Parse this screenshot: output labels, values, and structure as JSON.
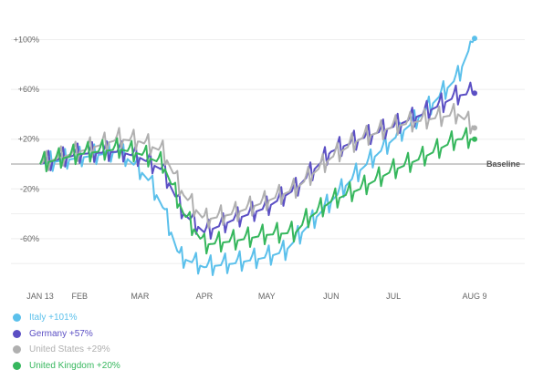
{
  "chart_data": {
    "type": "line",
    "title": "",
    "xlabel": "",
    "ylabel": "",
    "ylim": [
      -90,
      125
    ],
    "baseline_label": "Baseline",
    "y_ticks": [
      {
        "value": 100,
        "label": "+100%"
      },
      {
        "value": 60,
        "label": "+60%"
      },
      {
        "value": 20,
        "label": "+20%"
      },
      {
        "value": -20,
        "label": "-20%"
      },
      {
        "value": -60,
        "label": "-60%"
      }
    ],
    "x_ticks": [
      {
        "date": "2020-01-13",
        "label": "JAN 13"
      },
      {
        "date": "2020-02-01",
        "label": "FEB"
      },
      {
        "date": "2020-03-01",
        "label": "MAR"
      },
      {
        "date": "2020-04-01",
        "label": "APR"
      },
      {
        "date": "2020-05-01",
        "label": "MAY"
      },
      {
        "date": "2020-06-01",
        "label": "JUN"
      },
      {
        "date": "2020-07-01",
        "label": "JUL"
      },
      {
        "date": "2020-08-09",
        "label": "AUG 9"
      }
    ],
    "x_start": "2020-01-13",
    "x_end": "2020-08-09",
    "series": [
      {
        "name": "Italy",
        "color": "#5bc0eb",
        "end_label": "+101%",
        "anchors": [
          [
            "2020-01-13",
            0
          ],
          [
            "2020-02-01",
            5
          ],
          [
            "2020-02-20",
            10
          ],
          [
            "2020-03-01",
            -5
          ],
          [
            "2020-03-06",
            -15
          ],
          [
            "2020-03-12",
            -35
          ],
          [
            "2020-03-20",
            -75
          ],
          [
            "2020-04-01",
            -83
          ],
          [
            "2020-04-15",
            -80
          ],
          [
            "2020-05-01",
            -75
          ],
          [
            "2020-05-10",
            -70
          ],
          [
            "2020-05-18",
            -55
          ],
          [
            "2020-06-01",
            -30
          ],
          [
            "2020-06-15",
            -5
          ],
          [
            "2020-07-01",
            20
          ],
          [
            "2020-07-15",
            40
          ],
          [
            "2020-08-01",
            70
          ],
          [
            "2020-08-07",
            95
          ],
          [
            "2020-08-09",
            101
          ]
        ]
      },
      {
        "name": "Germany",
        "color": "#5b4fc4",
        "end_label": "+57%",
        "anchors": [
          [
            "2020-01-13",
            0
          ],
          [
            "2020-02-01",
            8
          ],
          [
            "2020-02-20",
            10
          ],
          [
            "2020-03-01",
            5
          ],
          [
            "2020-03-12",
            -5
          ],
          [
            "2020-03-22",
            -40
          ],
          [
            "2020-04-01",
            -55
          ],
          [
            "2020-04-15",
            -45
          ],
          [
            "2020-05-01",
            -35
          ],
          [
            "2020-05-15",
            -20
          ],
          [
            "2020-06-01",
            10
          ],
          [
            "2020-06-15",
            20
          ],
          [
            "2020-07-01",
            30
          ],
          [
            "2020-07-15",
            40
          ],
          [
            "2020-08-01",
            55
          ],
          [
            "2020-08-09",
            57
          ]
        ]
      },
      {
        "name": "United States",
        "color": "#b0b0b0",
        "end_label": "+29%",
        "anchors": [
          [
            "2020-01-13",
            0
          ],
          [
            "2020-02-01",
            10
          ],
          [
            "2020-02-20",
            20
          ],
          [
            "2020-03-01",
            18
          ],
          [
            "2020-03-12",
            10
          ],
          [
            "2020-03-22",
            -25
          ],
          [
            "2020-04-01",
            -45
          ],
          [
            "2020-04-15",
            -40
          ],
          [
            "2020-05-01",
            -30
          ],
          [
            "2020-05-15",
            -20
          ],
          [
            "2020-06-01",
            5
          ],
          [
            "2020-06-15",
            20
          ],
          [
            "2020-07-01",
            30
          ],
          [
            "2020-07-15",
            35
          ],
          [
            "2020-08-01",
            40
          ],
          [
            "2020-08-09",
            29
          ]
        ]
      },
      {
        "name": "United Kingdom",
        "color": "#36b75d",
        "end_label": "+20%",
        "anchors": [
          [
            "2020-01-13",
            0
          ],
          [
            "2020-02-01",
            8
          ],
          [
            "2020-02-20",
            12
          ],
          [
            "2020-03-01",
            8
          ],
          [
            "2020-03-12",
            0
          ],
          [
            "2020-03-22",
            -40
          ],
          [
            "2020-04-01",
            -65
          ],
          [
            "2020-04-15",
            -62
          ],
          [
            "2020-05-01",
            -57
          ],
          [
            "2020-05-15",
            -55
          ],
          [
            "2020-05-20",
            -45
          ],
          [
            "2020-06-01",
            -30
          ],
          [
            "2020-06-15",
            -20
          ],
          [
            "2020-07-01",
            -5
          ],
          [
            "2020-07-15",
            5
          ],
          [
            "2020-08-01",
            20
          ],
          [
            "2020-08-09",
            20
          ]
        ]
      }
    ]
  },
  "legend": [
    {
      "label": "Italy +101%",
      "color": "#5bc0eb"
    },
    {
      "label": "Germany +57%",
      "color": "#5b4fc4"
    },
    {
      "label": "United States +29%",
      "color": "#b0b0b0"
    },
    {
      "label": "United Kingdom +20%",
      "color": "#36b75d"
    }
  ]
}
